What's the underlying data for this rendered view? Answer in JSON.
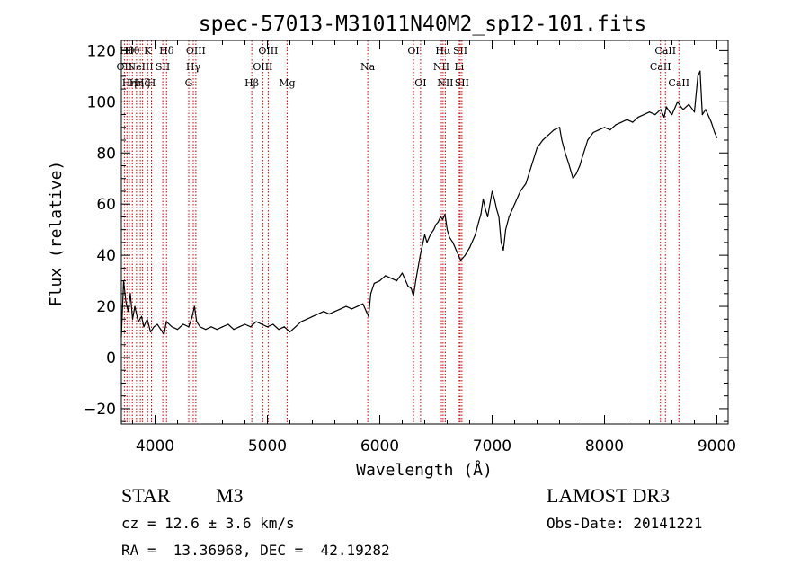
{
  "chart_data": {
    "type": "line",
    "title": "spec-57013-M31011N40M2_sp12-101.fits",
    "xlabel": "Wavelength (Å)",
    "ylabel": "Flux (relative)",
    "xlim": [
      3700,
      9100
    ],
    "ylim": [
      -26,
      124
    ],
    "xticks": [
      4000,
      5000,
      6000,
      7000,
      8000,
      9000
    ],
    "yticks": [
      -20,
      0,
      20,
      40,
      60,
      80,
      100,
      120
    ],
    "line_color": "#000000",
    "marker_color": "#cc0000",
    "spectrum": [
      [
        3700,
        8
      ],
      [
        3720,
        30
      ],
      [
        3740,
        22
      ],
      [
        3760,
        18
      ],
      [
        3780,
        25
      ],
      [
        3800,
        15
      ],
      [
        3820,
        20
      ],
      [
        3850,
        14
      ],
      [
        3880,
        16
      ],
      [
        3900,
        12
      ],
      [
        3930,
        15
      ],
      [
        3960,
        10
      ],
      [
        3990,
        12
      ],
      [
        4020,
        13
      ],
      [
        4050,
        11
      ],
      [
        4080,
        9
      ],
      [
        4100,
        14
      ],
      [
        4150,
        12
      ],
      [
        4200,
        11
      ],
      [
        4250,
        13
      ],
      [
        4300,
        12
      ],
      [
        4330,
        16
      ],
      [
        4350,
        20
      ],
      [
        4370,
        14
      ],
      [
        4400,
        12
      ],
      [
        4450,
        11
      ],
      [
        4500,
        12
      ],
      [
        4550,
        11
      ],
      [
        4600,
        12
      ],
      [
        4650,
        13
      ],
      [
        4700,
        11
      ],
      [
        4750,
        12
      ],
      [
        4800,
        13
      ],
      [
        4850,
        12
      ],
      [
        4900,
        14
      ],
      [
        4950,
        13
      ],
      [
        5000,
        12
      ],
      [
        5050,
        13
      ],
      [
        5100,
        11
      ],
      [
        5150,
        12
      ],
      [
        5200,
        10
      ],
      [
        5250,
        12
      ],
      [
        5300,
        14
      ],
      [
        5350,
        15
      ],
      [
        5400,
        16
      ],
      [
        5450,
        17
      ],
      [
        5500,
        18
      ],
      [
        5550,
        17
      ],
      [
        5600,
        18
      ],
      [
        5650,
        19
      ],
      [
        5700,
        20
      ],
      [
        5750,
        19
      ],
      [
        5800,
        20
      ],
      [
        5850,
        21
      ],
      [
        5880,
        18
      ],
      [
        5900,
        16
      ],
      [
        5920,
        25
      ],
      [
        5950,
        29
      ],
      [
        6000,
        30
      ],
      [
        6050,
        32
      ],
      [
        6100,
        31
      ],
      [
        6150,
        30
      ],
      [
        6200,
        33
      ],
      [
        6250,
        28
      ],
      [
        6280,
        27
      ],
      [
        6300,
        24
      ],
      [
        6320,
        30
      ],
      [
        6340,
        35
      ],
      [
        6360,
        40
      ],
      [
        6380,
        44
      ],
      [
        6400,
        48
      ],
      [
        6420,
        45
      ],
      [
        6450,
        48
      ],
      [
        6480,
        50
      ],
      [
        6500,
        52
      ],
      [
        6520,
        53
      ],
      [
        6540,
        55
      ],
      [
        6560,
        54
      ],
      [
        6580,
        56
      ],
      [
        6600,
        50
      ],
      [
        6620,
        47
      ],
      [
        6650,
        45
      ],
      [
        6680,
        42
      ],
      [
        6700,
        40
      ],
      [
        6720,
        38
      ],
      [
        6740,
        39
      ],
      [
        6760,
        40
      ],
      [
        6800,
        43
      ],
      [
        6850,
        48
      ],
      [
        6880,
        53
      ],
      [
        6900,
        56
      ],
      [
        6920,
        62
      ],
      [
        6940,
        58
      ],
      [
        6960,
        55
      ],
      [
        6980,
        60
      ],
      [
        7000,
        65
      ],
      [
        7020,
        62
      ],
      [
        7040,
        58
      ],
      [
        7060,
        55
      ],
      [
        7080,
        45
      ],
      [
        7100,
        42
      ],
      [
        7120,
        50
      ],
      [
        7150,
        55
      ],
      [
        7200,
        60
      ],
      [
        7250,
        65
      ],
      [
        7300,
        68
      ],
      [
        7350,
        75
      ],
      [
        7400,
        82
      ],
      [
        7450,
        85
      ],
      [
        7500,
        87
      ],
      [
        7550,
        89
      ],
      [
        7600,
        90
      ],
      [
        7620,
        85
      ],
      [
        7650,
        80
      ],
      [
        7680,
        76
      ],
      [
        7700,
        73
      ],
      [
        7720,
        70
      ],
      [
        7750,
        72
      ],
      [
        7780,
        75
      ],
      [
        7800,
        78
      ],
      [
        7850,
        85
      ],
      [
        7900,
        88
      ],
      [
        7950,
        89
      ],
      [
        8000,
        90
      ],
      [
        8050,
        89
      ],
      [
        8100,
        91
      ],
      [
        8150,
        92
      ],
      [
        8200,
        93
      ],
      [
        8250,
        92
      ],
      [
        8300,
        94
      ],
      [
        8350,
        95
      ],
      [
        8400,
        96
      ],
      [
        8450,
        95
      ],
      [
        8500,
        97
      ],
      [
        8530,
        94
      ],
      [
        8550,
        98
      ],
      [
        8580,
        96
      ],
      [
        8600,
        95
      ],
      [
        8650,
        100
      ],
      [
        8680,
        98
      ],
      [
        8700,
        97
      ],
      [
        8750,
        99
      ],
      [
        8800,
        96
      ],
      [
        8830,
        110
      ],
      [
        8850,
        112
      ],
      [
        8870,
        95
      ],
      [
        8900,
        97
      ],
      [
        8950,
        92
      ],
      [
        8980,
        88
      ],
      [
        9000,
        86
      ]
    ],
    "line_markers": [
      {
        "wl": 3727,
        "label": "OII",
        "row": 1
      },
      {
        "wl": 3750,
        "label": "Hθ",
        "row": 0
      },
      {
        "wl": 3771,
        "label": "Hη",
        "row": 2
      },
      {
        "wl": 3798,
        "label": "Hθ",
        "row": 0
      },
      {
        "wl": 3835,
        "label": "Hη",
        "row": 2
      },
      {
        "wl": 3869,
        "label": "NeIII",
        "row": 1
      },
      {
        "wl": 3889,
        "label": "Hζ",
        "row": 2
      },
      {
        "wl": 3934,
        "label": "K",
        "row": 0
      },
      {
        "wl": 3968,
        "label": "H",
        "row": 2
      },
      {
        "wl": 4069,
        "label": "SII",
        "row": 1
      },
      {
        "wl": 4102,
        "label": "Hδ",
        "row": 0
      },
      {
        "wl": 4300,
        "label": "G",
        "row": 2
      },
      {
        "wl": 4340,
        "label": "Hγ",
        "row": 1
      },
      {
        "wl": 4363,
        "label": "OIII",
        "row": 0
      },
      {
        "wl": 4861,
        "label": "Hβ",
        "row": 2
      },
      {
        "wl": 4959,
        "label": "OIII",
        "row": 1
      },
      {
        "wl": 5007,
        "label": "OIII",
        "row": 0
      },
      {
        "wl": 5175,
        "label": "Mg",
        "row": 2
      },
      {
        "wl": 5893,
        "label": "Na",
        "row": 1
      },
      {
        "wl": 6300,
        "label": "OI",
        "row": 0
      },
      {
        "wl": 6363,
        "label": "OI",
        "row": 2
      },
      {
        "wl": 6548,
        "label": "NII",
        "row": 1
      },
      {
        "wl": 6563,
        "label": "Hα",
        "row": 0
      },
      {
        "wl": 6583,
        "label": "NII",
        "row": 2
      },
      {
        "wl": 6707,
        "label": "Li",
        "row": 1
      },
      {
        "wl": 6716,
        "label": "SII",
        "row": 0
      },
      {
        "wl": 6731,
        "label": "SII",
        "row": 2
      },
      {
        "wl": 8498,
        "label": "CaII",
        "row": 1
      },
      {
        "wl": 8542,
        "label": "CaII",
        "row": 0
      },
      {
        "wl": 8662,
        "label": "CaII",
        "row": 2
      }
    ]
  },
  "info": {
    "object_class": "STAR",
    "subclass": "M3",
    "survey": "LAMOST DR3",
    "redshift": "cz = 12.6 ± 3.6 km/s",
    "obs_date": "Obs-Date: 20141221",
    "coords": "RA =  13.36968, DEC =  42.19282"
  }
}
